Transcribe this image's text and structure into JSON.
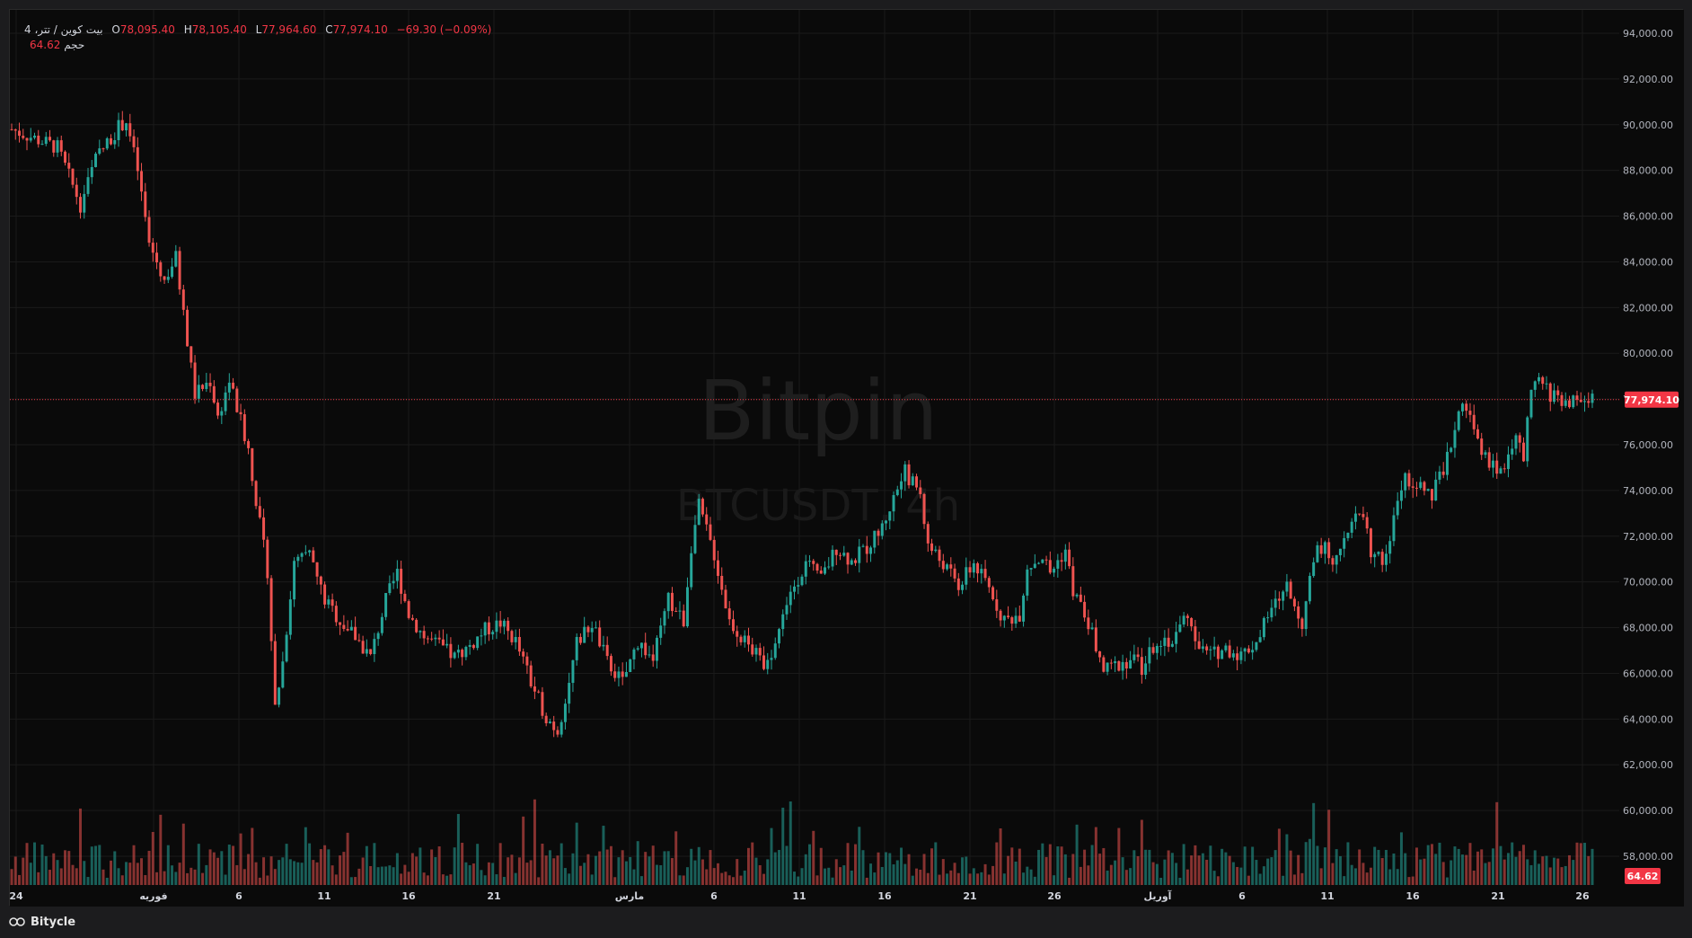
{
  "legend": {
    "symbol": "بیت کوین / تتر، 4",
    "o_label": "O",
    "o_value": "78,095.40",
    "h_label": "H",
    "h_value": "78,105.40",
    "l_label": "L",
    "l_value": "77,964.60",
    "c_label": "C",
    "c_value": "77,974.10",
    "change": "−69.30 (−0.09%)",
    "volume_label": "حجم",
    "volume_value": "64.62"
  },
  "watermark": {
    "brand": "Bitpin",
    "symbol": "BTCUSDT, 4h"
  },
  "footer": {
    "brand": "Bitycle"
  },
  "colors": {
    "up": "#26a69a",
    "down": "#ef5350",
    "price_tag": "#f23645",
    "background": "#0a0a0a",
    "grid": "#1a1a1a"
  },
  "chart_data": {
    "type": "candlestick",
    "timeframe": "4h",
    "ylim": [
      56000,
      95000
    ],
    "y_ticks": [
      "94,000.00",
      "92,000.00",
      "90,000.00",
      "88,000.00",
      "86,000.00",
      "84,000.00",
      "82,000.00",
      "80,000.00",
      "78,000.00",
      "76,000.00",
      "74,000.00",
      "72,000.00",
      "70,000.00",
      "68,000.00",
      "66,000.00",
      "64,000.00",
      "62,000.00",
      "60,000.00",
      "58,000.00"
    ],
    "x_ticks": [
      "24",
      "فوریه",
      "6",
      "11",
      "16",
      "21",
      "مارس",
      "6",
      "11",
      "16",
      "21",
      "26",
      "آوریل",
      "6",
      "11",
      "16",
      "21",
      "26"
    ],
    "last_price": 77974.1,
    "last_price_label": "77,974.10",
    "last_volume_label": "64.62",
    "price_path": [
      [
        0,
        89800
      ],
      [
        12,
        89000
      ],
      [
        18,
        86500
      ],
      [
        22,
        88500
      ],
      [
        28,
        89900
      ],
      [
        30,
        90200
      ],
      [
        33,
        88000
      ],
      [
        36,
        84800
      ],
      [
        40,
        83200
      ],
      [
        43,
        84200
      ],
      [
        46,
        80500
      ],
      [
        48,
        78200
      ],
      [
        52,
        78800
      ],
      [
        54,
        77200
      ],
      [
        57,
        78800
      ],
      [
        60,
        77000
      ],
      [
        62,
        75800
      ],
      [
        65,
        72500
      ],
      [
        67,
        70500
      ],
      [
        69,
        64500
      ],
      [
        71,
        66500
      ],
      [
        74,
        70800
      ],
      [
        78,
        71200
      ],
      [
        82,
        69200
      ],
      [
        86,
        68300
      ],
      [
        90,
        67600
      ],
      [
        94,
        66700
      ],
      [
        98,
        69200
      ],
      [
        101,
        70400
      ],
      [
        104,
        68600
      ],
      [
        108,
        67600
      ],
      [
        112,
        67200
      ],
      [
        116,
        66700
      ],
      [
        120,
        67200
      ],
      [
        124,
        67900
      ],
      [
        128,
        68200
      ],
      [
        132,
        67400
      ],
      [
        136,
        65600
      ],
      [
        140,
        64100
      ],
      [
        143,
        63500
      ],
      [
        146,
        65600
      ],
      [
        148,
        67300
      ],
      [
        152,
        68200
      ],
      [
        156,
        66500
      ],
      [
        160,
        65600
      ],
      [
        164,
        67400
      ],
      [
        168,
        66600
      ],
      [
        172,
        69200
      ],
      [
        176,
        68300
      ],
      [
        178,
        71600
      ],
      [
        180,
        73300
      ],
      [
        184,
        71200
      ],
      [
        188,
        68300
      ],
      [
        192,
        67400
      ],
      [
        196,
        66600
      ],
      [
        198,
        66400
      ],
      [
        200,
        67400
      ],
      [
        204,
        69600
      ],
      [
        208,
        70800
      ],
      [
        212,
        70100
      ],
      [
        216,
        71500
      ],
      [
        220,
        70900
      ],
      [
        224,
        71500
      ],
      [
        228,
        72400
      ],
      [
        232,
        74100
      ],
      [
        234,
        74800
      ],
      [
        238,
        73900
      ],
      [
        240,
        71600
      ],
      [
        244,
        70800
      ],
      [
        248,
        69800
      ],
      [
        252,
        70800
      ],
      [
        256,
        69700
      ],
      [
        260,
        68300
      ],
      [
        264,
        68600
      ],
      [
        266,
        70700
      ],
      [
        270,
        71100
      ],
      [
        272,
        70400
      ],
      [
        276,
        71400
      ],
      [
        278,
        69600
      ],
      [
        282,
        68200
      ],
      [
        286,
        66100
      ],
      [
        290,
        66400
      ],
      [
        294,
        66700
      ],
      [
        296,
        66200
      ],
      [
        300,
        67500
      ],
      [
        304,
        67400
      ],
      [
        308,
        68700
      ],
      [
        310,
        67200
      ],
      [
        314,
        66800
      ],
      [
        318,
        67100
      ],
      [
        322,
        66800
      ],
      [
        326,
        67400
      ],
      [
        330,
        68800
      ],
      [
        334,
        69800
      ],
      [
        338,
        68200
      ],
      [
        342,
        71700
      ],
      [
        346,
        71100
      ],
      [
        350,
        72300
      ],
      [
        354,
        73100
      ],
      [
        356,
        71300
      ],
      [
        360,
        70900
      ],
      [
        362,
        72900
      ],
      [
        365,
        74700
      ],
      [
        368,
        73900
      ],
      [
        370,
        74300
      ],
      [
        372,
        73800
      ],
      [
        376,
        75400
      ],
      [
        380,
        78100
      ],
      [
        384,
        76100
      ],
      [
        386,
        75400
      ],
      [
        390,
        74800
      ],
      [
        392,
        75700
      ],
      [
        394,
        76200
      ],
      [
        396,
        75400
      ],
      [
        398,
        78300
      ],
      [
        400,
        78800
      ],
      [
        403,
        78200
      ],
      [
        406,
        78000
      ],
      [
        408,
        77900
      ],
      [
        412,
        77900
      ],
      [
        414,
        78100
      ]
    ],
    "volume_note": "volume histogram below price, bars colored by candle direction"
  }
}
